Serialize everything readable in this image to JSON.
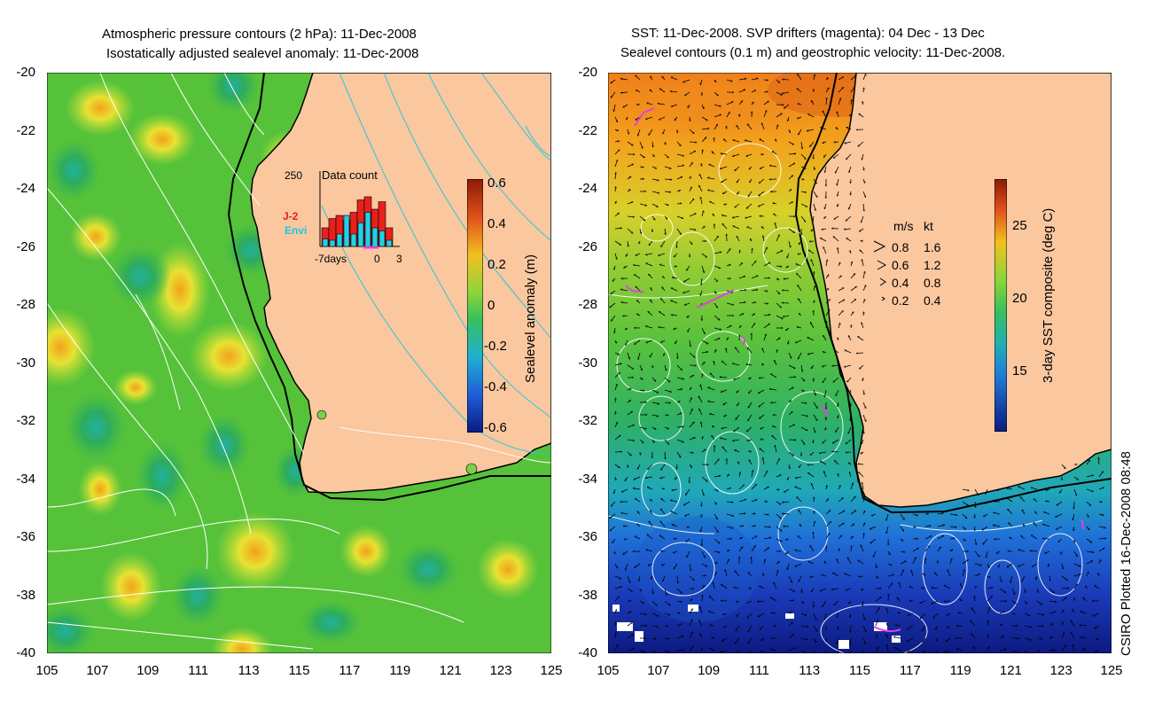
{
  "left_panel": {
    "title_line1": "Atmospheric pressure contours (2 hPa): 11-Dec-2008",
    "title_line2": "Isostatically adjusted sealevel anomaly: 11-Dec-2008",
    "colorbar_label": "Sealevel anomaly (m)",
    "colorbar_ticks": [
      "0.6",
      "0.4",
      "0.2",
      "0",
      "-0.2",
      "-0.4",
      "-0.6"
    ],
    "inset": {
      "top_value": "250",
      "title": "Data count",
      "legend_j2": "J-2",
      "legend_envi": "Envi",
      "x_left": "-7days",
      "x_mid": "0",
      "x_right": "3",
      "red_bars": [
        0.3,
        0.45,
        0.5,
        0.42,
        0.55,
        0.75,
        0.8,
        0.6,
        0.72,
        0.3
      ],
      "cyan_bars": [
        0.12,
        0.1,
        0.2,
        0.5,
        0.2,
        0.38,
        0.55,
        0.3,
        0.25,
        0.1
      ]
    }
  },
  "right_panel": {
    "title_line1": "SST: 11-Dec-2008. SVP drifters (magenta): 04 Dec - 13 Dec",
    "title_line2": "Sealevel contours (0.1 m) and geostrophic velocity: 11-Dec-2008.",
    "colorbar_label": "3-day SST composite (deg C)",
    "colorbar_ticks": [
      "25",
      "20",
      "15"
    ],
    "speed_legend": {
      "header_ms": "m/s",
      "header_kt": "kt",
      "rows": [
        {
          "ms": "0.8",
          "kt": "1.6"
        },
        {
          "ms": "0.6",
          "kt": "1.2"
        },
        {
          "ms": "0.4",
          "kt": "0.8"
        },
        {
          "ms": "0.2",
          "kt": "0.4"
        }
      ]
    }
  },
  "axes": {
    "y_labels": [
      "-20",
      "-22",
      "-24",
      "-26",
      "-28",
      "-30",
      "-32",
      "-34",
      "-36",
      "-38",
      "-40"
    ],
    "x_labels": [
      "105",
      "107",
      "109",
      "111",
      "113",
      "115",
      "117",
      "119",
      "121",
      "123",
      "125"
    ]
  },
  "credit": "CSIRO Plotted 16-Dec-2008 08:48",
  "colors": {
    "land": "#fac79f",
    "sla_background": "#4fc83a",
    "sst_warm": "#ef8a20",
    "sst_cold": "#1530b0",
    "contour": "#ffffff",
    "drifter": "#e040e0"
  }
}
